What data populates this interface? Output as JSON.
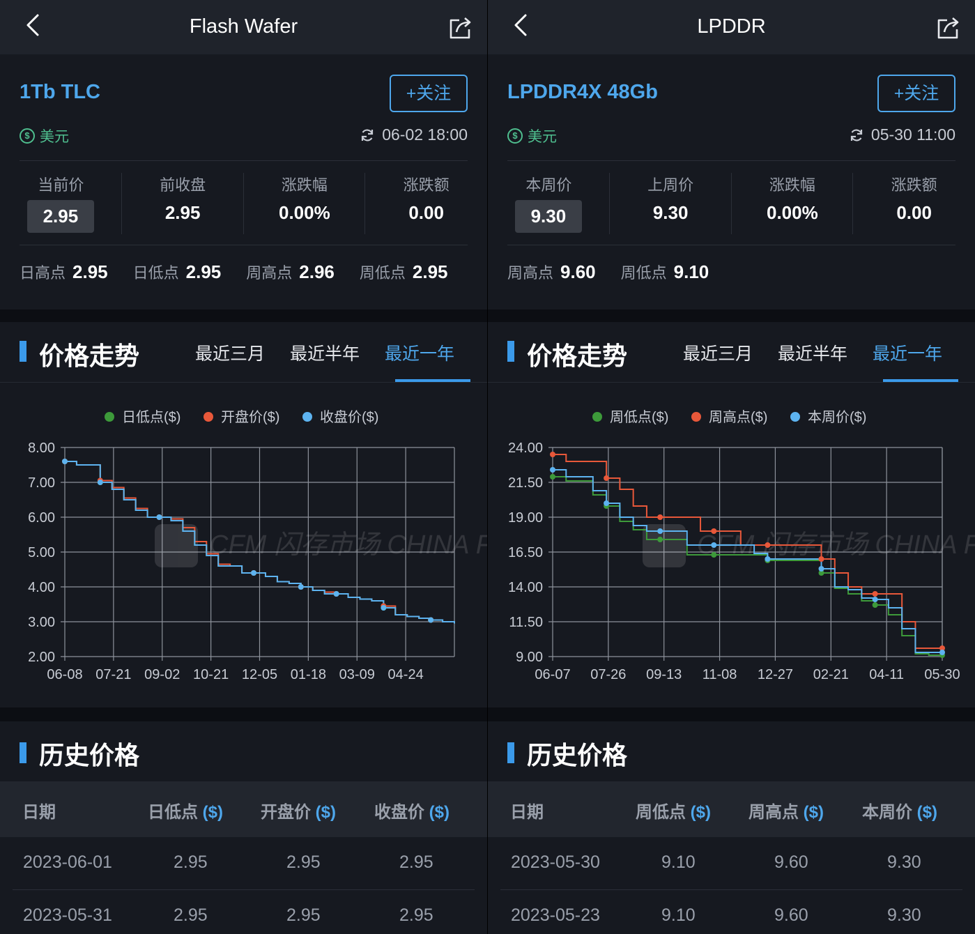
{
  "panels": [
    {
      "header": {
        "title": "Flash Wafer"
      },
      "product": {
        "name": "1Tb TLC",
        "follow_label": "+关注",
        "currency_symbol": "$",
        "currency": "美元",
        "update_time": "06-02 18:00"
      },
      "stats": [
        {
          "label": "当前价",
          "value": "2.95"
        },
        {
          "label": "前收盘",
          "value": "2.95"
        },
        {
          "label": "涨跌幅",
          "value": "0.00%"
        },
        {
          "label": "涨跌额",
          "value": "0.00"
        }
      ],
      "highlights": [
        {
          "label": "日高点",
          "value": "2.95"
        },
        {
          "label": "日低点",
          "value": "2.95"
        },
        {
          "label": "周高点",
          "value": "2.96"
        },
        {
          "label": "周低点",
          "value": "2.95"
        }
      ],
      "trend": {
        "title": "价格走势",
        "tabs": [
          "最近三月",
          "最近半年",
          "最近一年"
        ],
        "active_tab": 2
      },
      "history": {
        "title": "历史价格",
        "columns": [
          {
            "name": "日期",
            "unit": ""
          },
          {
            "name": "日低点",
            "unit": "($)"
          },
          {
            "name": "开盘价",
            "unit": "($)"
          },
          {
            "name": "收盘价",
            "unit": "($)"
          }
        ],
        "rows": [
          [
            "2023-06-01",
            "2.95",
            "2.95",
            "2.95"
          ],
          [
            "2023-05-31",
            "2.95",
            "2.95",
            "2.95"
          ]
        ]
      }
    },
    {
      "header": {
        "title": "LPDDR"
      },
      "product": {
        "name": "LPDDR4X 48Gb",
        "follow_label": "+关注",
        "currency_symbol": "$",
        "currency": "美元",
        "update_time": "05-30 11:00"
      },
      "stats": [
        {
          "label": "本周价",
          "value": "9.30"
        },
        {
          "label": "上周价",
          "value": "9.30"
        },
        {
          "label": "涨跌幅",
          "value": "0.00%"
        },
        {
          "label": "涨跌额",
          "value": "0.00"
        }
      ],
      "highlights": [
        {
          "label": "周高点",
          "value": "9.60"
        },
        {
          "label": "周低点",
          "value": "9.10"
        }
      ],
      "trend": {
        "title": "价格走势",
        "tabs": [
          "最近三月",
          "最近半年",
          "最近一年"
        ],
        "active_tab": 2
      },
      "history": {
        "title": "历史价格",
        "columns": [
          {
            "name": "日期",
            "unit": ""
          },
          {
            "name": "周低点",
            "unit": "($)"
          },
          {
            "name": "周高点",
            "unit": "($)"
          },
          {
            "name": "本周价",
            "unit": "($)"
          }
        ],
        "rows": [
          [
            "2023-05-30",
            "9.10",
            "9.60",
            "9.30"
          ],
          [
            "2023-05-23",
            "9.10",
            "9.60",
            "9.30"
          ]
        ]
      }
    }
  ],
  "colors": {
    "accent": "#4ea7ec",
    "green_series": "#3d9a3a",
    "red_series": "#e8583a",
    "blue_series": "#5db3f0"
  },
  "chart_data": [
    {
      "type": "line",
      "title": "",
      "watermark": "CFM 闪存市场 CHINA FLASH MARKET",
      "x_tick_labels": [
        "06-08",
        "07-21",
        "09-02",
        "10-21",
        "12-05",
        "01-18",
        "03-09",
        "04-24"
      ],
      "y_tick_labels": [
        "8.00",
        "7.00",
        "6.00",
        "5.00",
        "4.00",
        "3.00",
        "2.00"
      ],
      "ylim": [
        2,
        8
      ],
      "legend_position": "top",
      "x": [
        "06-08",
        "06-20",
        "07-10",
        "07-21",
        "07-25",
        "07-28",
        "07-31",
        "08-03",
        "09-02",
        "09-05",
        "09-08",
        "09-11",
        "09-14",
        "09-17",
        "09-20",
        "09-30",
        "10-21",
        "11-01",
        "11-10",
        "11-18",
        "12-05",
        "12-20",
        "01-05",
        "01-18",
        "01-30",
        "02-10",
        "02-25",
        "03-09",
        "03-12",
        "03-20",
        "04-05",
        "04-24",
        "05-10",
        "05-31"
      ],
      "series": [
        {
          "name": "日低点($)",
          "color": "#3d9a3a",
          "values": [
            7.6,
            7.5,
            7.5,
            7.0,
            6.8,
            6.5,
            6.2,
            6.0,
            6.0,
            5.9,
            5.6,
            5.2,
            4.9,
            4.6,
            4.6,
            4.4,
            4.4,
            4.3,
            4.15,
            4.1,
            4.0,
            3.9,
            3.8,
            3.8,
            3.7,
            3.65,
            3.6,
            3.4,
            3.2,
            3.15,
            3.1,
            3.05,
            3.0,
            2.95
          ]
        },
        {
          "name": "开盘价($)",
          "color": "#e8583a",
          "values": [
            7.6,
            7.5,
            7.5,
            7.05,
            6.85,
            6.55,
            6.25,
            6.0,
            6.0,
            5.95,
            5.7,
            5.3,
            4.95,
            4.65,
            4.6,
            4.4,
            4.4,
            4.3,
            4.15,
            4.1,
            4.0,
            3.9,
            3.85,
            3.8,
            3.7,
            3.65,
            3.6,
            3.45,
            3.2,
            3.15,
            3.1,
            3.05,
            3.0,
            2.95
          ]
        },
        {
          "name": "收盘价($)",
          "color": "#5db3f0",
          "values": [
            7.6,
            7.5,
            7.5,
            7.0,
            6.8,
            6.5,
            6.2,
            6.0,
            6.0,
            5.9,
            5.6,
            5.2,
            4.9,
            4.6,
            4.6,
            4.4,
            4.4,
            4.3,
            4.15,
            4.1,
            4.0,
            3.9,
            3.8,
            3.8,
            3.7,
            3.65,
            3.6,
            3.4,
            3.2,
            3.15,
            3.1,
            3.05,
            3.0,
            2.95
          ]
        }
      ],
      "markers": [
        0,
        3,
        8,
        16,
        20,
        23,
        27,
        31
      ]
    },
    {
      "type": "line",
      "title": "",
      "watermark": "CFM 闪存市场 CHINA FLASH MARKET",
      "x_tick_labels": [
        "06-07",
        "07-26",
        "09-13",
        "11-08",
        "12-27",
        "02-21",
        "04-11",
        "05-30"
      ],
      "y_tick_labels": [
        "24.00",
        "21.50",
        "19.00",
        "16.50",
        "14.00",
        "11.50",
        "9.00"
      ],
      "ylim": [
        9,
        24
      ],
      "legend_position": "top",
      "x": [
        "06-07",
        "06-14",
        "06-28",
        "07-12",
        "07-26",
        "08-09",
        "08-23",
        "09-06",
        "09-13",
        "09-27",
        "10-11",
        "10-25",
        "11-08",
        "11-22",
        "12-06",
        "12-20",
        "12-27",
        "01-10",
        "01-24",
        "02-07",
        "02-21",
        "03-07",
        "03-21",
        "04-04",
        "04-11",
        "04-18",
        "04-25",
        "05-02",
        "05-16",
        "05-30"
      ],
      "series": [
        {
          "name": "周低点($)",
          "color": "#3d9a3a",
          "values": [
            21.9,
            21.6,
            21.6,
            20.6,
            19.8,
            18.7,
            18.1,
            17.4,
            17.4,
            17.4,
            16.3,
            16.3,
            16.3,
            16.3,
            16.3,
            16.3,
            15.9,
            15.9,
            15.9,
            15.9,
            15.0,
            13.9,
            13.5,
            13.0,
            12.7,
            12.0,
            10.5,
            9.2,
            9.1,
            9.1
          ]
        },
        {
          "name": "周高点($)",
          "color": "#e8583a",
          "values": [
            23.5,
            23.0,
            23.0,
            23.0,
            21.8,
            21.0,
            19.8,
            19.0,
            19.0,
            19.0,
            19.0,
            18.0,
            18.0,
            18.0,
            17.0,
            17.0,
            17.0,
            17.0,
            17.0,
            17.0,
            16.0,
            15.0,
            14.0,
            13.5,
            13.5,
            13.5,
            11.5,
            9.6,
            9.6,
            9.6
          ]
        },
        {
          "name": "本周价($)",
          "color": "#5db3f0",
          "values": [
            22.4,
            21.9,
            21.9,
            20.9,
            20.0,
            19.0,
            18.4,
            18.0,
            18.0,
            18.0,
            17.0,
            17.0,
            17.0,
            17.0,
            17.0,
            16.4,
            16.0,
            16.0,
            16.0,
            16.0,
            15.3,
            14.0,
            13.8,
            13.2,
            13.1,
            12.5,
            11.0,
            9.3,
            9.3,
            9.3
          ]
        }
      ],
      "markers": [
        0,
        4,
        8,
        12,
        16,
        20,
        24,
        29
      ]
    }
  ]
}
